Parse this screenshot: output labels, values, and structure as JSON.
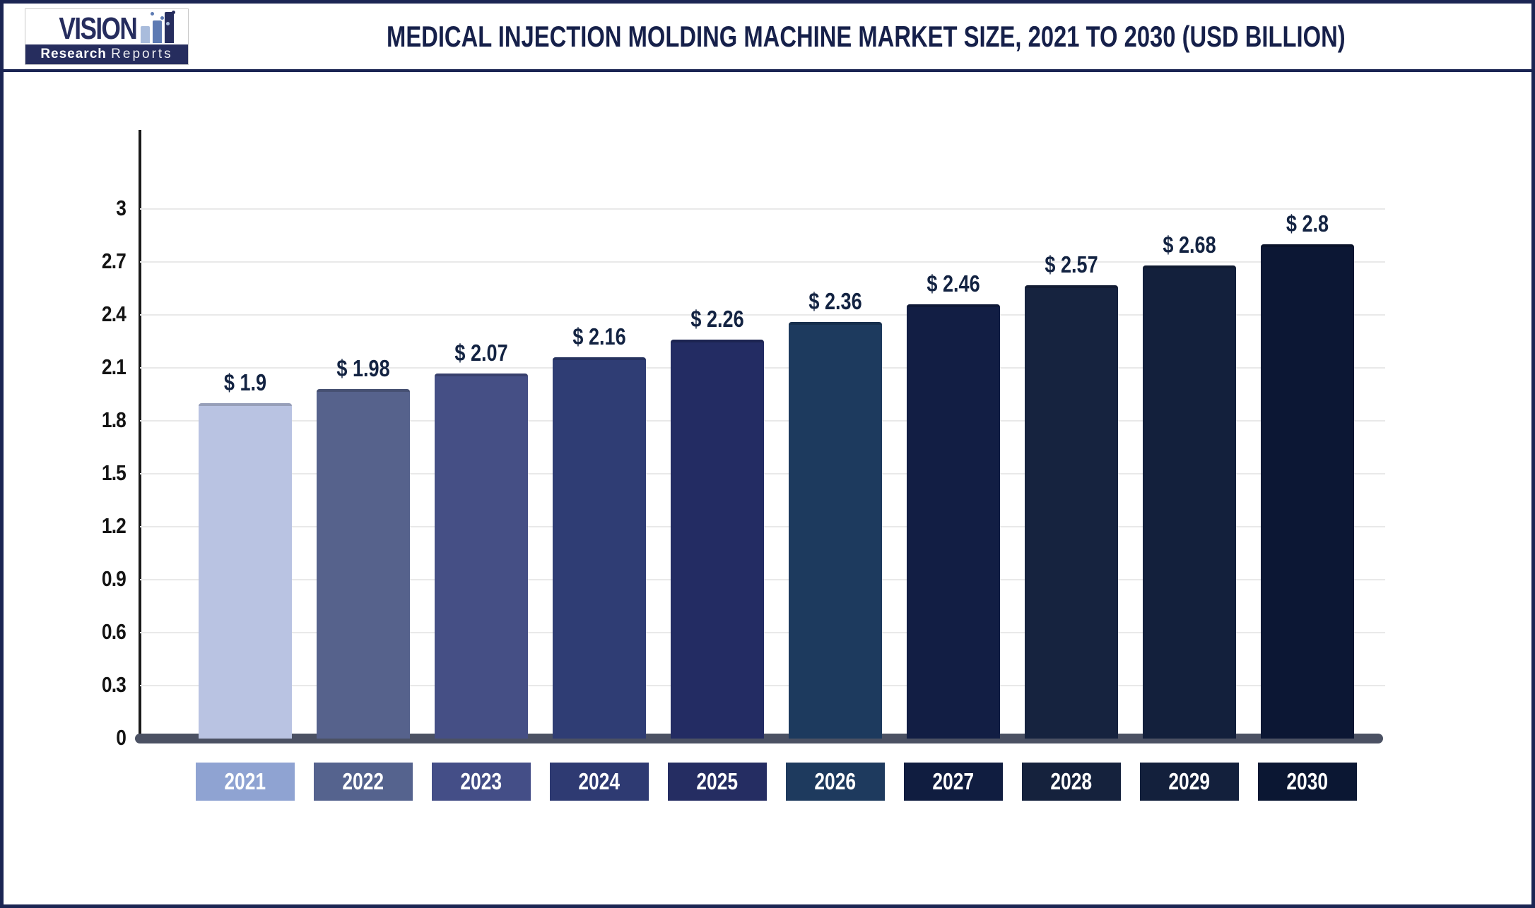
{
  "logo": {
    "name_top": "VISION",
    "name_bottom_bold": "Research",
    "name_bottom_light": "Reports",
    "icon": "bar-chart-logo-icon"
  },
  "title": "MEDICAL INJECTION MOLDING MACHINE MARKET SIZE, 2021 TO 2030 (USD BILLION)",
  "colors": {
    "page_border": "#1b2553",
    "title_text": "#16204a",
    "axis_line": "#1a1a1a",
    "gridline": "#e9e9e9",
    "baseline_bar": "#4b5163",
    "ytick_text": "#141414",
    "value_label_text": "#132342",
    "year_label_text": "#ffffff",
    "logo_navy": "#262d5e",
    "logo_bar_light": "#a9bcdc",
    "logo_bar_mid": "#5d7ab3"
  },
  "chart_data": {
    "type": "bar",
    "title": "MEDICAL INJECTION MOLDING MACHINE MARKET SIZE, 2021 TO 2030 (USD BILLION)",
    "categories": [
      "2021",
      "2022",
      "2023",
      "2024",
      "2025",
      "2026",
      "2027",
      "2028",
      "2029",
      "2030"
    ],
    "values": [
      1.9,
      1.98,
      2.07,
      2.16,
      2.26,
      2.36,
      2.46,
      2.57,
      2.68,
      2.8
    ],
    "value_labels": [
      "$ 1.9",
      "$ 1.98",
      "$ 2.07",
      "$ 2.16",
      "$ 2.26",
      "$ 2.36",
      "$ 2.46",
      "$ 2.57",
      "$ 2.68",
      "$ 2.8"
    ],
    "bar_colors": [
      "#b9c3e2",
      "#56628c",
      "#454f85",
      "#2f3d74",
      "#232c63",
      "#1d3a5e",
      "#121e44",
      "#16233f",
      "#13203c",
      "#0c1734"
    ],
    "year_box_colors": [
      "#8fa3d2",
      "#55638e",
      "#444e87",
      "#2e3a72",
      "#252d62",
      "#1e3a5e",
      "#101d40",
      "#15223d",
      "#13203c",
      "#0b1733"
    ],
    "xlabel": "",
    "ylabel": "",
    "ylim": [
      0,
      3
    ],
    "ytick_labels": [
      "0",
      "0.3",
      "0.6",
      "0.9",
      "1.2",
      "1.5",
      "1.8",
      "2.1",
      "2.4",
      "2.7",
      "3"
    ],
    "grid": "horizontal",
    "legend": "none"
  }
}
